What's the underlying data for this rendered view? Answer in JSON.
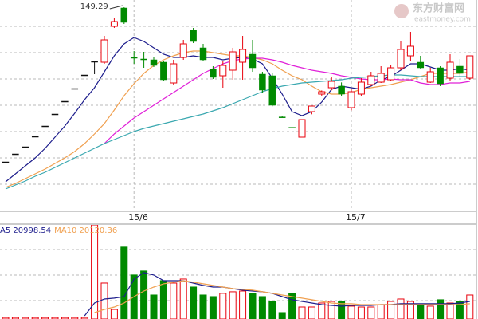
{
  "chart_data": [
    {
      "type": "candlestick",
      "categories": [
        null,
        null,
        null,
        null,
        null,
        null,
        null,
        null,
        null,
        null,
        null,
        null,
        null,
        "15/6",
        null,
        null,
        null,
        null,
        null,
        null,
        null,
        null,
        null,
        null,
        null,
        null,
        null,
        null,
        null,
        null,
        null,
        null,
        null,
        null,
        null,
        "15/7",
        null,
        null,
        null,
        null,
        null,
        null,
        null,
        null,
        null,
        null,
        null,
        null
      ],
      "open": [
        91.1,
        94.1,
        96.8,
        100.7,
        104.6,
        109.1,
        113.9,
        118.7,
        123.8,
        128.9,
        128.6,
        142.1,
        149,
        130.4,
        129.8,
        129.5,
        128.6,
        120.8,
        130.4,
        140.6,
        134,
        125.9,
        123.5,
        125.6,
        128.6,
        131.6,
        124.1,
        123.5,
        108,
        104.1,
        100.4,
        110,
        116.6,
        119,
        119.6,
        111.5,
        116.6,
        120.2,
        121.1,
        122,
        126.5,
        131,
        128.6,
        121.1,
        126.5,
        122.6,
        127.1,
        122.6
      ],
      "close": [
        91.1,
        94.1,
        96.8,
        100.7,
        104.6,
        109.1,
        113.9,
        118.7,
        123.8,
        128.9,
        137,
        143.9,
        143.6,
        130.1,
        129.5,
        127.4,
        122,
        128,
        135.5,
        136.4,
        129.5,
        122.9,
        127.4,
        132.5,
        133.4,
        126.5,
        118.1,
        112.4,
        107.9,
        104,
        107,
        112.1,
        117.5,
        121.4,
        116.6,
        117.5,
        121.1,
        123.5,
        124.4,
        126.5,
        133.4,
        134.6,
        126.5,
        125,
        120.5,
        128.6,
        124.4,
        131
      ],
      "high": [
        91.1,
        94.1,
        96.8,
        100.7,
        104.6,
        109.1,
        113.9,
        118.7,
        123.8,
        128.9,
        138.5,
        145.4,
        149.29,
        132.8,
        132.5,
        130.7,
        129.2,
        129.5,
        137,
        141.5,
        135.5,
        127.1,
        128.9,
        134,
        138.5,
        137,
        125,
        124.4,
        108.2,
        104.1,
        107,
        112.1,
        118,
        123,
        121,
        118.7,
        122.6,
        125,
        127.1,
        127.7,
        136.4,
        140,
        131,
        126.5,
        127.1,
        131.6,
        129.8,
        131
      ],
      "low": [
        91.1,
        94.1,
        96.8,
        100.7,
        104.6,
        109.1,
        113.9,
        118.7,
        123.8,
        124.1,
        128,
        141.5,
        143,
        128,
        126.5,
        126.8,
        121.7,
        120.2,
        129.5,
        135.8,
        128.9,
        122.3,
        119,
        122,
        122,
        125,
        117,
        112,
        107.9,
        104,
        100.4,
        109,
        116,
        118,
        116,
        110.5,
        116,
        119.6,
        120.8,
        121.7,
        125.6,
        129.2,
        125.9,
        120.8,
        119.6,
        121.7,
        122.9,
        122
      ],
      "up_color": "#e8000b",
      "down_color": "#008a00",
      "flat_color": "#111111",
      "ylim": [
        72.5,
        152
      ],
      "grid": true,
      "annotation": "149.29",
      "series": [
        {
          "color": "#1d1d8c",
          "values": [
            83.6,
            86.6,
            89.6,
            92.6,
            96.2,
            100.4,
            104.6,
            109.4,
            114.5,
            119,
            125,
            131,
            135.5,
            137.9,
            136.4,
            134,
            131.6,
            130.4,
            130.4,
            131,
            130.4,
            130.4,
            129.5,
            130.1,
            130.4,
            129.8,
            128,
            122.6,
            116.6,
            110,
            108.5,
            110,
            113.6,
            118.4,
            119.6,
            119,
            118.4,
            119.6,
            122,
            123.2,
            125.6,
            128,
            128,
            126.8,
            125.6,
            125.6,
            126.2,
            125.6
          ]
        },
        {
          "color": "#f0a050",
          "values": [
            81.5,
            83,
            84.8,
            86.6,
            88.4,
            90.5,
            92.6,
            95,
            98,
            101.6,
            105.5,
            110.6,
            116,
            120.5,
            124.4,
            127.4,
            129.5,
            131,
            132.2,
            132.8,
            132.8,
            132.2,
            131.6,
            131,
            131,
            130.4,
            129.5,
            128,
            125.6,
            123.5,
            122,
            119.6,
            117.5,
            116.6,
            116.6,
            117.2,
            118.4,
            119,
            119.6,
            120.2,
            121.1,
            122,
            123.2,
            124.4,
            124.4,
            124.4,
            124.4,
            125
          ]
        },
        {
          "color": "#e020d8",
          "values": [
            null,
            null,
            null,
            null,
            null,
            null,
            null,
            null,
            null,
            null,
            98,
            101.6,
            104.6,
            107.6,
            110,
            112.4,
            114.8,
            117.2,
            119.6,
            122,
            124.4,
            126.2,
            128,
            129.2,
            129.8,
            130.1,
            130.1,
            129.5,
            128.6,
            127.4,
            126.5,
            125.6,
            125,
            124.4,
            123.5,
            122.9,
            122.3,
            122,
            122,
            122.3,
            122,
            122,
            120.8,
            120.2,
            120.2,
            120.8,
            120.8,
            121.4
          ]
        },
        {
          "color": "#3aa8b0",
          "values": [
            80.9,
            82.4,
            83.9,
            85.7,
            87.2,
            89,
            90.8,
            92.6,
            94.4,
            96.2,
            98,
            99.5,
            101,
            102.5,
            103.7,
            104.6,
            105.5,
            106.4,
            107.3,
            108.2,
            109.1,
            110.3,
            111.5,
            113,
            114.5,
            116,
            117.5,
            118.7,
            119.6,
            120.2,
            120.8,
            121.1,
            121.4,
            121.7,
            122,
            122.6,
            122.9,
            123.2,
            123.5,
            123.8,
            123.8,
            123.5,
            123.2,
            123.2,
            123.2,
            123.2,
            123.2,
            123.2
          ]
        }
      ]
    },
    {
      "type": "bar",
      "values": [
        2000,
        2000,
        2000,
        2000,
        2000,
        2000,
        2000,
        2000,
        2000,
        125000,
        47700,
        12700,
        95500,
        58400,
        63700,
        31800,
        50900,
        47700,
        53000,
        42400,
        31800,
        29700,
        34000,
        36100,
        37100,
        34000,
        29700,
        23300,
        8500,
        34000,
        15900,
        15900,
        21200,
        23300,
        23300,
        17000,
        15900,
        15900,
        19100,
        23300,
        26500,
        23300,
        19100,
        17000,
        25500,
        21200,
        23300,
        31800
      ],
      "ylim": [
        0,
        125000
      ],
      "series": [
        {
          "name": "A5 20998.54",
          "color": "#1d1d8c",
          "values": [
            null,
            null,
            null,
            null,
            null,
            null,
            null,
            null,
            4200,
            21200,
            26500,
            27600,
            29700,
            53000,
            61500,
            58400,
            50900,
            50900,
            50900,
            47700,
            44600,
            42400,
            42400,
            40300,
            38200,
            37100,
            36100,
            34000,
            29700,
            25500,
            23300,
            21200,
            19100,
            18000,
            17000,
            18000,
            18000,
            18000,
            19100,
            19100,
            20200,
            20200,
            20200,
            20200,
            20200,
            20200,
            21200,
            23300
          ]
        },
        {
          "name": "MA10 20120.36",
          "color": "#f0a050",
          "values": [
            null,
            null,
            null,
            null,
            null,
            null,
            null,
            null,
            null,
            8500,
            12700,
            15900,
            21200,
            29700,
            37100,
            42400,
            46700,
            48800,
            50900,
            48800,
            46700,
            44600,
            42400,
            40300,
            39300,
            38200,
            36100,
            34000,
            31800,
            29700,
            27600,
            25500,
            23300,
            21200,
            20200,
            20200,
            19100,
            19100,
            19100,
            19100,
            19100,
            19100,
            19100,
            19100,
            19100,
            19100,
            19100,
            20200
          ]
        }
      ]
    }
  ],
  "watermark": {
    "name": "东方财富网",
    "url": "eastmoney.com"
  }
}
